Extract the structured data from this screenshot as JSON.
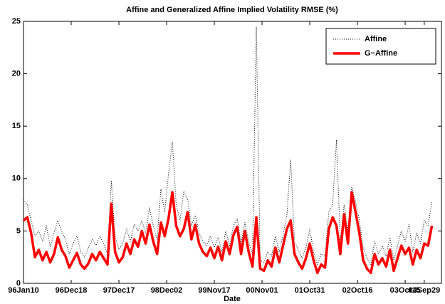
{
  "chart_data": {
    "type": "line",
    "title": "Affine and Generalized Affine Implied Volatility RMSE (%)",
    "xlabel": "Date",
    "xlim": [
      0,
      438
    ],
    "xticks": [
      {
        "value": 0,
        "label": "96Jan10"
      },
      {
        "value": 50,
        "label": "96Dec18"
      },
      {
        "value": 100,
        "label": "97Dec17"
      },
      {
        "value": 150,
        "label": "98Dec02"
      },
      {
        "value": 200,
        "label": "99Nov17"
      },
      {
        "value": 250,
        "label": "00Nov01"
      },
      {
        "value": 300,
        "label": "01Oct31"
      },
      {
        "value": 350,
        "label": "02Oct16"
      },
      {
        "value": 400,
        "label": "03Oct15"
      },
      {
        "value": 420,
        "label": "04Sep29"
      }
    ],
    "ylim": [
      0,
      25
    ],
    "yticks": [
      0,
      5,
      10,
      15,
      20,
      25
    ],
    "grid": false,
    "legend": "upper right",
    "x": [
      0,
      4,
      8,
      12,
      16,
      20,
      24,
      28,
      32,
      36,
      40,
      44,
      48,
      52,
      56,
      60,
      64,
      68,
      72,
      76,
      80,
      84,
      88,
      92,
      96,
      100,
      104,
      108,
      112,
      116,
      120,
      124,
      128,
      132,
      136,
      140,
      144,
      148,
      152,
      156,
      160,
      164,
      168,
      172,
      176,
      180,
      184,
      188,
      192,
      196,
      200,
      204,
      208,
      212,
      216,
      220,
      224,
      228,
      232,
      236,
      240,
      244,
      248,
      252,
      256,
      260,
      264,
      268,
      272,
      276,
      280,
      284,
      288,
      292,
      296,
      300,
      304,
      308,
      312,
      316,
      320,
      324,
      328,
      332,
      336,
      340,
      344,
      348,
      352,
      356,
      360,
      364,
      368,
      372,
      376,
      380,
      384,
      388,
      392,
      396,
      400,
      404,
      408,
      412,
      416,
      420,
      424,
      428
    ],
    "series": [
      {
        "name": "Affine",
        "color": "#000000",
        "style": "dotted",
        "values": [
          8.0,
          7.5,
          6.0,
          4.5,
          5.0,
          4.0,
          5.5,
          3.5,
          4.8,
          6.0,
          5.0,
          4.2,
          2.8,
          3.8,
          4.5,
          3.0,
          2.5,
          3.4,
          4.2,
          3.6,
          4.5,
          3.8,
          2.8,
          9.8,
          4.5,
          3.2,
          3.8,
          5.2,
          4.0,
          5.6,
          5.0,
          6.0,
          4.8,
          7.2,
          5.5,
          4.2,
          9.0,
          6.8,
          10.5,
          13.5,
          7.5,
          6.0,
          8.8,
          8.0,
          5.5,
          6.5,
          4.8,
          4.0,
          3.6,
          4.5,
          3.4,
          4.4,
          3.0,
          5.0,
          3.6,
          5.5,
          6.2,
          3.8,
          5.8,
          4.0,
          2.8,
          24.5,
          2.2,
          2.0,
          3.0,
          2.6,
          4.5,
          3.0,
          4.6,
          6.5,
          11.8,
          4.0,
          3.2,
          2.4,
          3.4,
          5.2,
          3.0,
          1.8,
          2.8,
          2.6,
          6.8,
          7.5,
          13.7,
          4.0,
          7.5,
          5.0,
          9.2,
          7.8,
          6.0,
          3.4,
          2.4,
          1.8,
          4.0,
          2.8,
          3.6,
          2.6,
          4.4,
          2.2,
          3.6,
          5.0,
          4.0,
          5.6,
          3.0,
          4.8,
          3.8,
          6.0,
          5.5,
          7.8
        ]
      },
      {
        "name": "G−Affine",
        "color": "#ff0000",
        "style": "solid",
        "values": [
          6.0,
          6.3,
          4.8,
          2.5,
          3.2,
          2.2,
          3.0,
          2.0,
          2.8,
          4.4,
          3.2,
          2.6,
          1.5,
          2.2,
          2.9,
          1.8,
          1.4,
          1.9,
          2.8,
          2.2,
          3.0,
          2.4,
          1.8,
          7.6,
          3.0,
          2.0,
          2.5,
          3.8,
          2.8,
          4.2,
          3.5,
          5.0,
          3.8,
          5.6,
          4.0,
          2.8,
          5.8,
          4.5,
          6.2,
          8.7,
          5.5,
          4.5,
          5.2,
          6.8,
          4.2,
          5.6,
          3.8,
          3.0,
          2.6,
          3.4,
          2.4,
          3.5,
          2.2,
          4.0,
          2.8,
          4.6,
          5.4,
          2.8,
          5.0,
          3.0,
          1.6,
          6.3,
          1.4,
          1.2,
          2.2,
          1.6,
          3.4,
          2.0,
          3.6,
          5.2,
          6.0,
          2.8,
          2.0,
          1.4,
          2.4,
          3.8,
          2.2,
          1.0,
          1.8,
          1.5,
          5.2,
          6.3,
          5.5,
          2.8,
          6.6,
          3.8,
          8.7,
          6.8,
          4.8,
          2.2,
          1.4,
          1.0,
          2.8,
          1.8,
          2.4,
          1.6,
          3.2,
          1.2,
          2.4,
          3.6,
          2.8,
          3.4,
          1.8,
          3.2,
          2.4,
          3.8,
          3.6,
          5.5
        ]
      }
    ]
  }
}
